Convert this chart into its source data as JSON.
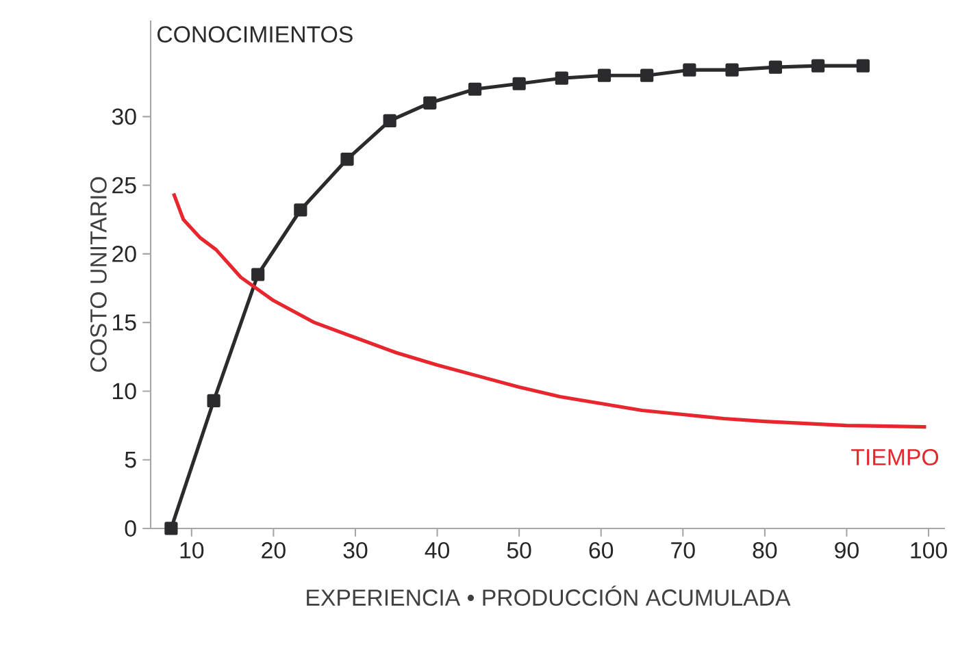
{
  "chart_data": {
    "type": "line",
    "xlabel": "EXPERIENCIA • PRODUCCIÓN ACUMULADA",
    "ylabel": "COSTO UNITARIO",
    "xlim": [
      5,
      102
    ],
    "ylim": [
      0,
      37
    ],
    "xticks": [
      10,
      20,
      30,
      40,
      50,
      60,
      70,
      80,
      90,
      100
    ],
    "yticks": [
      0,
      5,
      10,
      15,
      20,
      25,
      30
    ],
    "grid": false,
    "legend": false,
    "series": [
      {
        "name": "CONOCIMIENTOS",
        "color": "#2b2a2c",
        "marker": "square",
        "x": [
          7.5,
          12.7,
          18.1,
          23.3,
          29.0,
          34.2,
          39.1,
          44.6,
          50,
          55.2,
          60.4,
          65.6,
          70.8,
          76,
          81.3,
          86.5,
          92
        ],
        "values": [
          0,
          9.3,
          18.5,
          23.2,
          26.9,
          29.7,
          31.0,
          32.0,
          32.4,
          32.8,
          33.0,
          33.0,
          33.4,
          33.4,
          33.6,
          33.7,
          33.7
        ]
      },
      {
        "name": "TIEMPO",
        "color": "#e8262e",
        "marker": "none",
        "x": [
          7.8,
          9,
          11,
          13,
          16,
          20,
          25,
          30,
          35,
          40,
          45,
          50,
          55,
          60,
          65,
          70,
          75,
          80,
          90,
          99.7
        ],
        "values": [
          24.4,
          22.5,
          21.2,
          20.3,
          18.3,
          16.6,
          15.0,
          13.9,
          12.8,
          11.9,
          11.1,
          10.3,
          9.6,
          9.1,
          8.6,
          8.3,
          8.0,
          7.8,
          7.5,
          7.4
        ]
      }
    ]
  }
}
